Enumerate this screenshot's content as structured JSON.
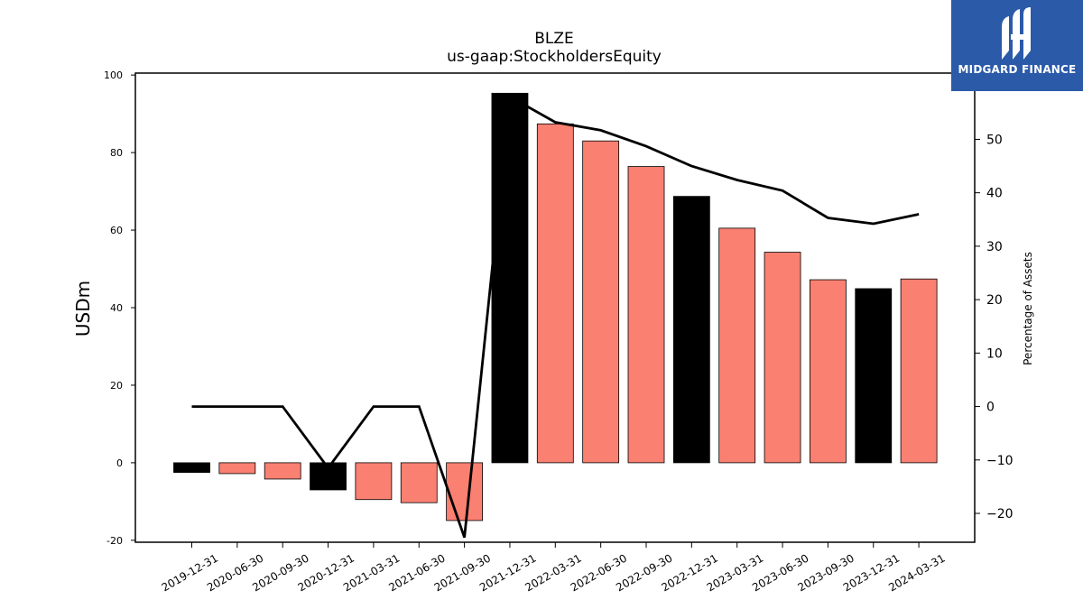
{
  "chart_data": {
    "type": "bar",
    "title": "BLZE",
    "subtitle": "us-gaap:StockholdersEquity",
    "ylabel": "USDm",
    "y2label": "Percentage of Assets",
    "ylim": [
      -20.5,
      100.5
    ],
    "y2lim": [
      -25.4,
      62.4
    ],
    "yticks": [
      -20,
      0,
      20,
      40,
      60,
      80,
      100
    ],
    "y2ticks": [
      -20,
      -10,
      0,
      10,
      20,
      30,
      40,
      50
    ],
    "categories": [
      "2019-12-31",
      "2020-06-30",
      "2020-09-30",
      "2020-12-31",
      "2021-03-31",
      "2021-06-30",
      "2021-09-30",
      "2021-12-31",
      "2022-03-31",
      "2022-06-30",
      "2022-09-30",
      "2022-12-31",
      "2023-03-31",
      "2023-06-30",
      "2023-09-30",
      "2023-12-31",
      "2024-03-31"
    ],
    "series": [
      {
        "type": "bar",
        "values": [
          -2.5,
          -2.8,
          -4.2,
          -7.0,
          -9.5,
          -10.3,
          -14.9,
          95.3,
          87.4,
          83.0,
          76.4,
          68.7,
          60.5,
          54.3,
          47.2,
          44.9,
          47.4
        ],
        "colors": [
          "#000000",
          "#fa8072",
          "#fa8072",
          "#000000",
          "#fa8072",
          "#fa8072",
          "#fa8072",
          "#000000",
          "#fa8072",
          "#fa8072",
          "#fa8072",
          "#000000",
          "#fa8072",
          "#fa8072",
          "#fa8072",
          "#000000",
          "#fa8072"
        ]
      },
      {
        "type": "line",
        "axis": "right",
        "color": "#000000",
        "values": [
          0,
          0,
          0,
          -11.5,
          0,
          0,
          -24.5,
          58.0,
          53.2,
          51.7,
          48.7,
          45.0,
          42.4,
          40.4,
          35.3,
          34.2,
          36.0
        ]
      }
    ],
    "grid": false,
    "legend": "none"
  },
  "logo": {
    "text": "MIDGARD FINANCE"
  }
}
